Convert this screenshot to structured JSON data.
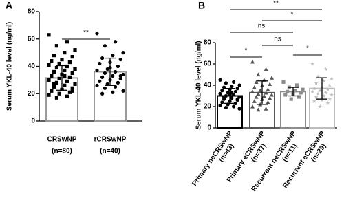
{
  "chart_data": [
    {
      "type": "bar",
      "panel_label": "A",
      "y_label": "Serum YKL-40 level (ng/ml)",
      "categories": [
        "CRSwNP",
        "rCRSwNP"
      ],
      "n_labels": [
        "(n=80)",
        "(n=40)"
      ],
      "values": [
        31.5,
        36
      ],
      "errors": [
        9,
        10
      ],
      "colors": [
        "#9a9a9a",
        "#9a9a9a"
      ],
      "markers": [
        "square",
        "circle"
      ],
      "points": [
        [
          63,
          58,
          55,
          52,
          50,
          48,
          47,
          45,
          44,
          43,
          42,
          41,
          40,
          39,
          38,
          37,
          36,
          35,
          34,
          33,
          32,
          31,
          30,
          29,
          28,
          27,
          26,
          25,
          24,
          23,
          22,
          21,
          20,
          19,
          18,
          17,
          38,
          33,
          27,
          22
        ],
        [
          64,
          58,
          55,
          50,
          48,
          46,
          45,
          43,
          42,
          40,
          38,
          37,
          36,
          35,
          34,
          33,
          32,
          31,
          30,
          29,
          28,
          27,
          26,
          25,
          24,
          22,
          21,
          20,
          33,
          39
        ]
      ],
      "ylim": [
        0,
        80
      ],
      "yticks": [
        0,
        20,
        40,
        60,
        80
      ],
      "comparisons": [
        {
          "groups": [
            0,
            1
          ],
          "label": "**"
        }
      ]
    },
    {
      "type": "bar",
      "panel_label": "B",
      "y_label": "Serum YKL-40 level (ng/ml)",
      "categories": [
        "Primary neCRSwNP",
        "Primary eCRSwNP",
        "Recurrent neCRSwNP",
        "Recurrent eCRSwNP"
      ],
      "n_labels": [
        "(n=43)",
        "(n=37)",
        "(n=11)",
        "(n=29)"
      ],
      "values": [
        30,
        33,
        34,
        37
      ],
      "errors": [
        7,
        11,
        4,
        10
      ],
      "colors": [
        "#000000",
        "#555555",
        "#8c8c8c",
        "#bdbdbd"
      ],
      "markers": [
        "circle",
        "triangle",
        "square",
        "star"
      ],
      "points": [
        [
          45,
          43,
          42,
          40,
          39,
          38,
          37,
          36,
          35,
          34,
          33,
          32,
          31,
          30,
          29,
          28,
          27,
          26,
          25,
          24,
          23,
          22,
          21,
          20,
          19,
          18,
          33,
          29,
          27,
          31
        ],
        [
          62,
          55,
          50,
          47,
          45,
          43,
          41,
          40,
          38,
          36,
          35,
          34,
          33,
          32,
          31,
          30,
          29,
          28,
          27,
          25,
          24,
          22,
          20,
          18,
          17
        ],
        [
          43,
          40,
          38,
          36,
          35,
          34,
          33,
          32,
          31,
          29,
          27
        ],
        [
          60,
          55,
          48,
          46,
          44,
          42,
          40,
          38,
          37,
          36,
          35,
          34,
          33,
          32,
          31,
          30,
          29,
          27,
          26,
          25,
          23,
          20
        ]
      ],
      "ylim": [
        0,
        80
      ],
      "yticks": [
        0,
        20,
        40,
        60,
        80
      ],
      "comparisons": [
        {
          "groups": [
            0,
            3
          ],
          "label": "**"
        },
        {
          "groups": [
            1,
            3
          ],
          "label": "*"
        },
        {
          "groups": [
            0,
            2
          ],
          "label": "ns"
        },
        {
          "groups": [
            1,
            2
          ],
          "label": "ns"
        },
        {
          "groups": [
            0,
            1
          ],
          "label": "*"
        },
        {
          "groups": [
            2,
            3
          ],
          "label": "*"
        }
      ]
    }
  ]
}
